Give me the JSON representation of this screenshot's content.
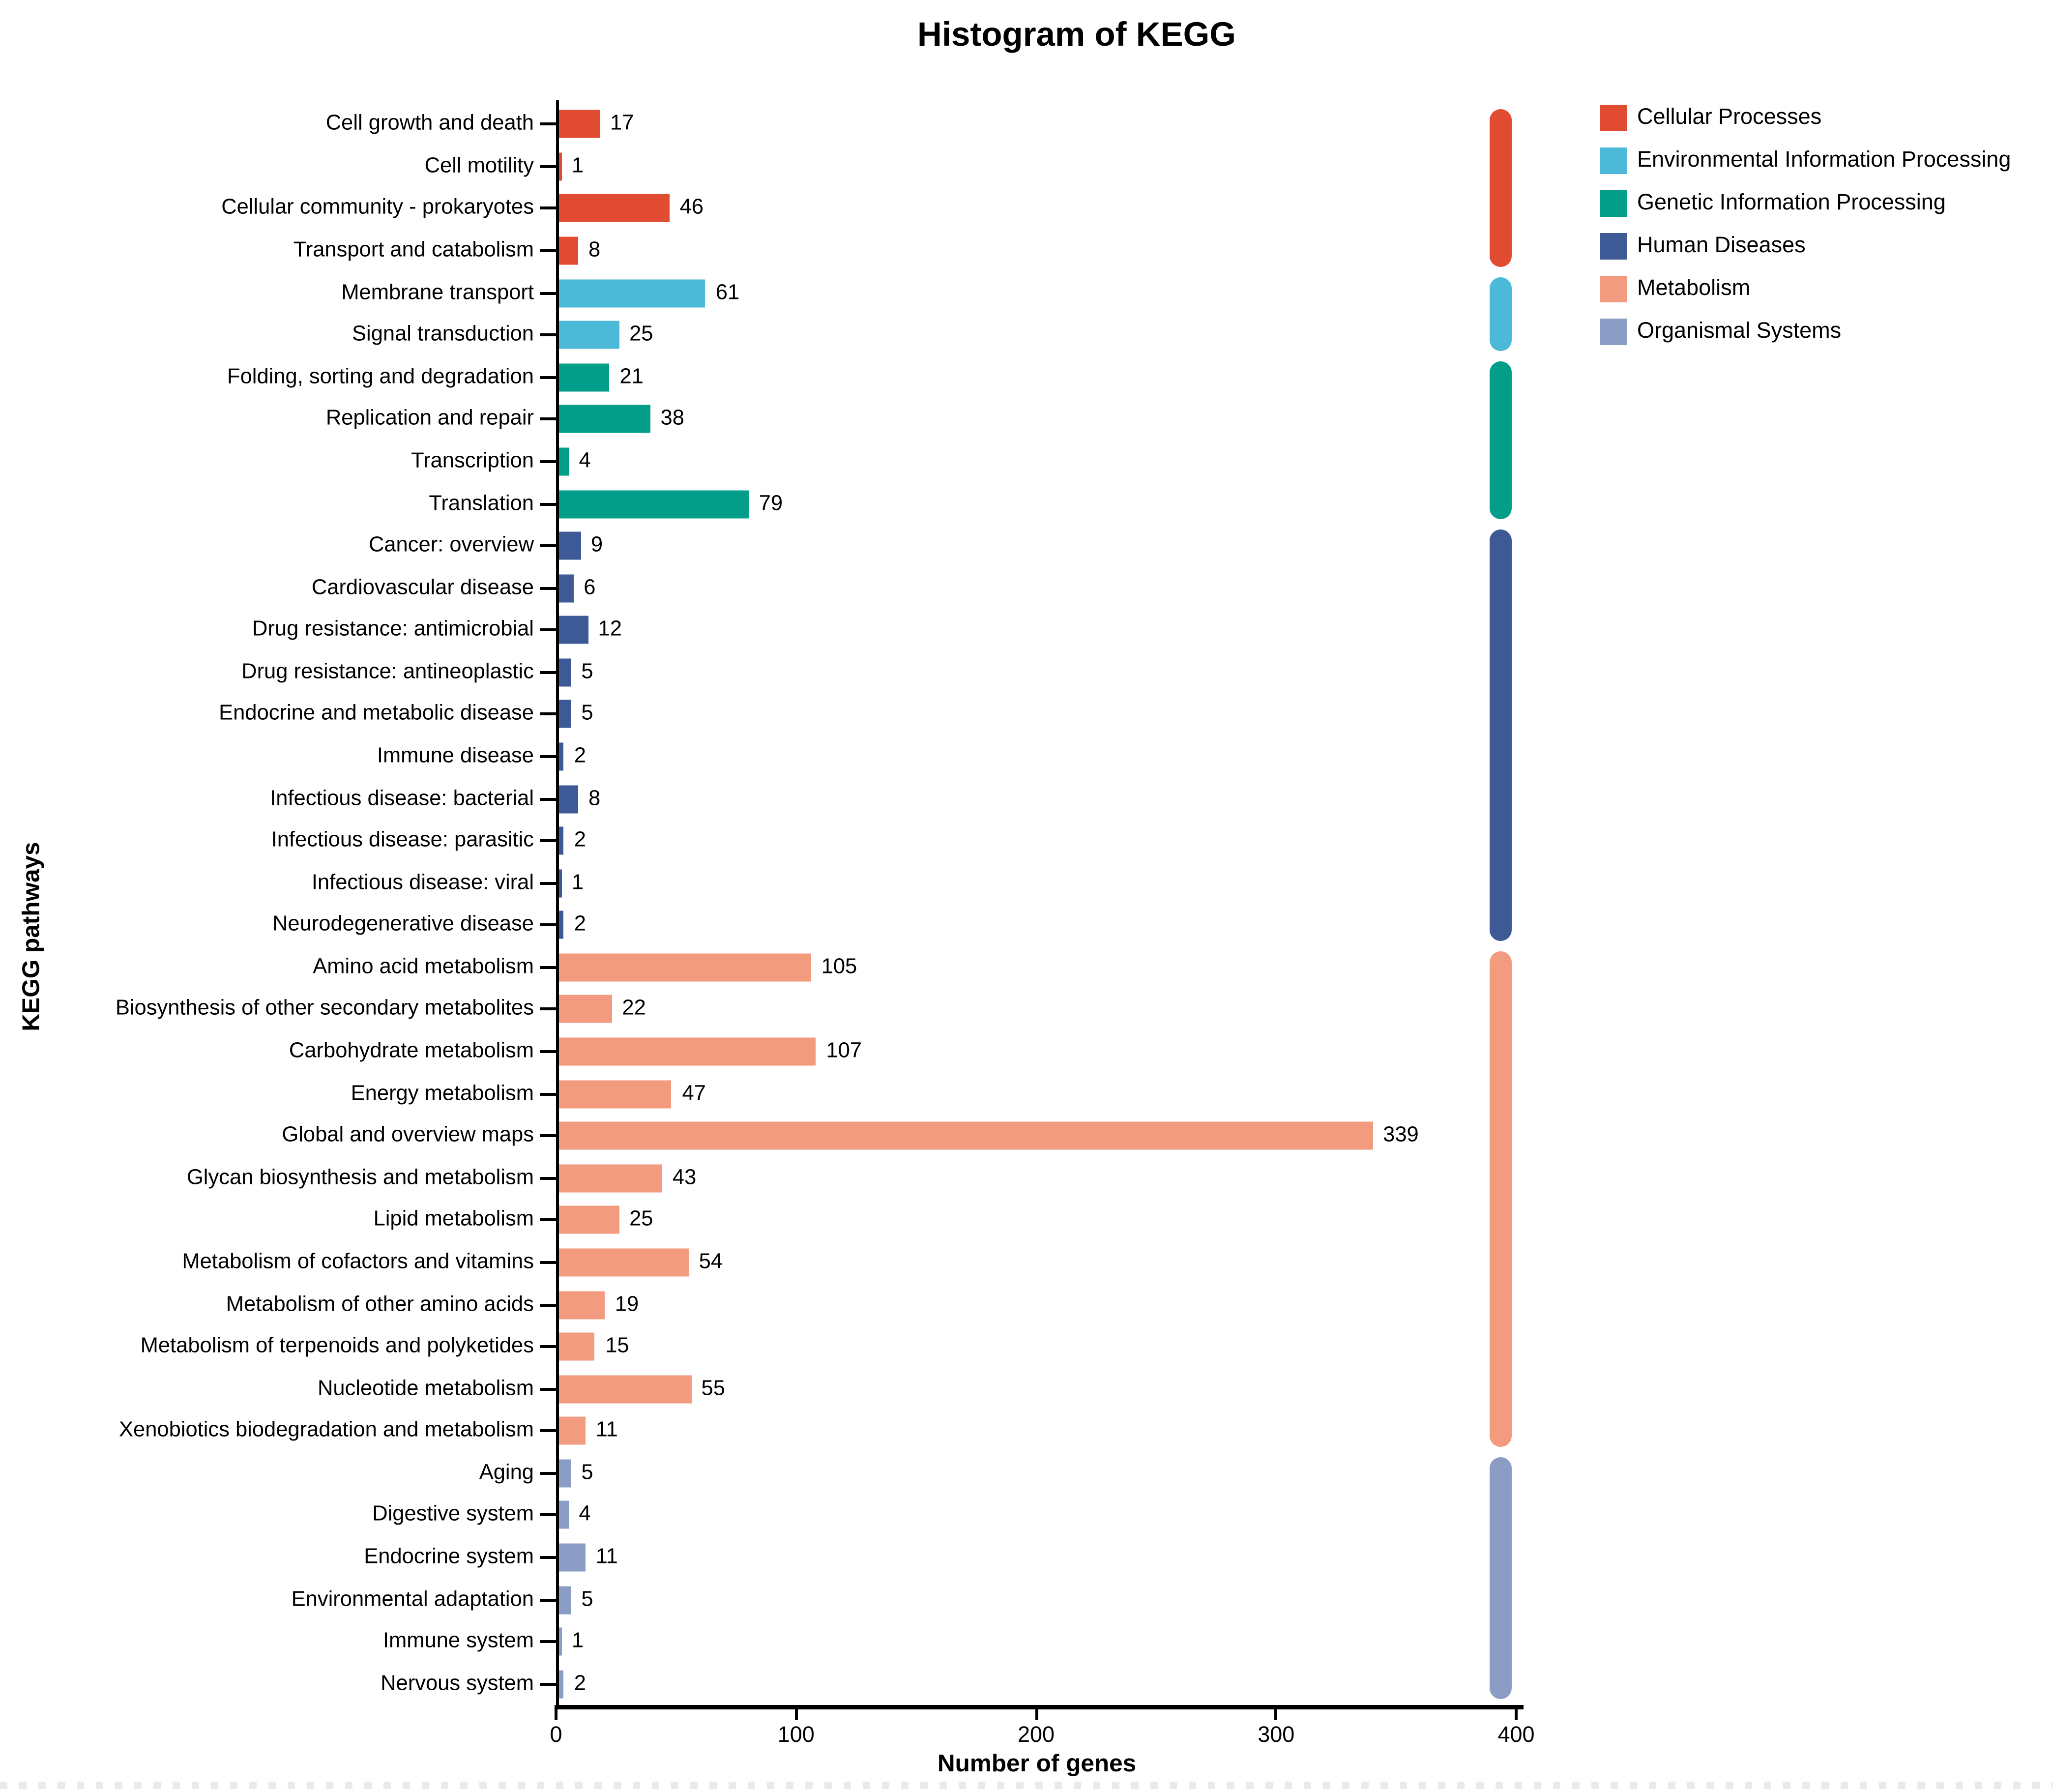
{
  "figure": {
    "title": "Histogram of KEGG",
    "x_axis": {
      "label": "Number of genes",
      "ticks": [
        0,
        100,
        200,
        300,
        400
      ],
      "max": 400
    },
    "y_axis": {
      "label": "KEGG pathways"
    }
  },
  "chart_data": {
    "type": "bar",
    "orientation": "horizontal",
    "title": "Histogram of KEGG",
    "xlabel": "Number of genes",
    "ylabel": "KEGG pathways",
    "xlim": [
      0,
      400
    ],
    "x_ticks": [
      0,
      100,
      200,
      300,
      400
    ],
    "grid": false,
    "legend_position": "top-right",
    "groups": [
      {
        "name": "Cellular Processes",
        "color": "#E04B31"
      },
      {
        "name": "Environmental Information Processing",
        "color": "#4BB9D7"
      },
      {
        "name": "Genetic Information Processing",
        "color": "#039E8A"
      },
      {
        "name": "Human Diseases",
        "color": "#3D5A96"
      },
      {
        "name": "Metabolism",
        "color": "#F29B7F"
      },
      {
        "name": "Organismal Systems",
        "color": "#8C9DC5"
      }
    ],
    "bars": [
      {
        "category": "Cell growth and death",
        "value": 17,
        "group": "Cellular Processes"
      },
      {
        "category": "Cell motility",
        "value": 1,
        "group": "Cellular Processes"
      },
      {
        "category": "Cellular community - prokaryotes",
        "value": 46,
        "group": "Cellular Processes"
      },
      {
        "category": "Transport and catabolism",
        "value": 8,
        "group": "Cellular Processes"
      },
      {
        "category": "Membrane transport",
        "value": 61,
        "group": "Environmental Information Processing"
      },
      {
        "category": "Signal transduction",
        "value": 25,
        "group": "Environmental Information Processing"
      },
      {
        "category": "Folding, sorting and degradation",
        "value": 21,
        "group": "Genetic Information Processing"
      },
      {
        "category": "Replication and repair",
        "value": 38,
        "group": "Genetic Information Processing"
      },
      {
        "category": "Transcription",
        "value": 4,
        "group": "Genetic Information Processing"
      },
      {
        "category": "Translation",
        "value": 79,
        "group": "Genetic Information Processing"
      },
      {
        "category": "Cancer: overview",
        "value": 9,
        "group": "Human Diseases"
      },
      {
        "category": "Cardiovascular disease",
        "value": 6,
        "group": "Human Diseases"
      },
      {
        "category": "Drug resistance: antimicrobial",
        "value": 12,
        "group": "Human Diseases"
      },
      {
        "category": "Drug resistance: antineoplastic",
        "value": 5,
        "group": "Human Diseases"
      },
      {
        "category": "Endocrine and metabolic disease",
        "value": 5,
        "group": "Human Diseases"
      },
      {
        "category": "Immune disease",
        "value": 2,
        "group": "Human Diseases"
      },
      {
        "category": "Infectious disease: bacterial",
        "value": 8,
        "group": "Human Diseases"
      },
      {
        "category": "Infectious disease: parasitic",
        "value": 2,
        "group": "Human Diseases"
      },
      {
        "category": "Infectious disease: viral",
        "value": 1,
        "group": "Human Diseases"
      },
      {
        "category": "Neurodegenerative disease",
        "value": 2,
        "group": "Human Diseases"
      },
      {
        "category": "Amino acid metabolism",
        "value": 105,
        "group": "Metabolism"
      },
      {
        "category": "Biosynthesis of other secondary metabolites",
        "value": 22,
        "group": "Metabolism"
      },
      {
        "category": "Carbohydrate metabolism",
        "value": 107,
        "group": "Metabolism"
      },
      {
        "category": "Energy metabolism",
        "value": 47,
        "group": "Metabolism"
      },
      {
        "category": "Global and overview maps",
        "value": 339,
        "group": "Metabolism"
      },
      {
        "category": "Glycan biosynthesis and metabolism",
        "value": 43,
        "group": "Metabolism"
      },
      {
        "category": "Lipid metabolism",
        "value": 25,
        "group": "Metabolism"
      },
      {
        "category": "Metabolism of cofactors and vitamins",
        "value": 54,
        "group": "Metabolism"
      },
      {
        "category": "Metabolism of other amino acids",
        "value": 19,
        "group": "Metabolism"
      },
      {
        "category": "Metabolism of terpenoids and polyketides",
        "value": 15,
        "group": "Metabolism"
      },
      {
        "category": "Nucleotide metabolism",
        "value": 55,
        "group": "Metabolism"
      },
      {
        "category": "Xenobiotics biodegradation and metabolism",
        "value": 11,
        "group": "Metabolism"
      },
      {
        "category": "Aging",
        "value": 5,
        "group": "Organismal Systems"
      },
      {
        "category": "Digestive system",
        "value": 4,
        "group": "Organismal Systems"
      },
      {
        "category": "Endocrine system",
        "value": 11,
        "group": "Organismal Systems"
      },
      {
        "category": "Environmental adaptation",
        "value": 5,
        "group": "Organismal Systems"
      },
      {
        "category": "Immune system",
        "value": 1,
        "group": "Organismal Systems"
      },
      {
        "category": "Nervous system",
        "value": 2,
        "group": "Organismal Systems"
      }
    ]
  }
}
